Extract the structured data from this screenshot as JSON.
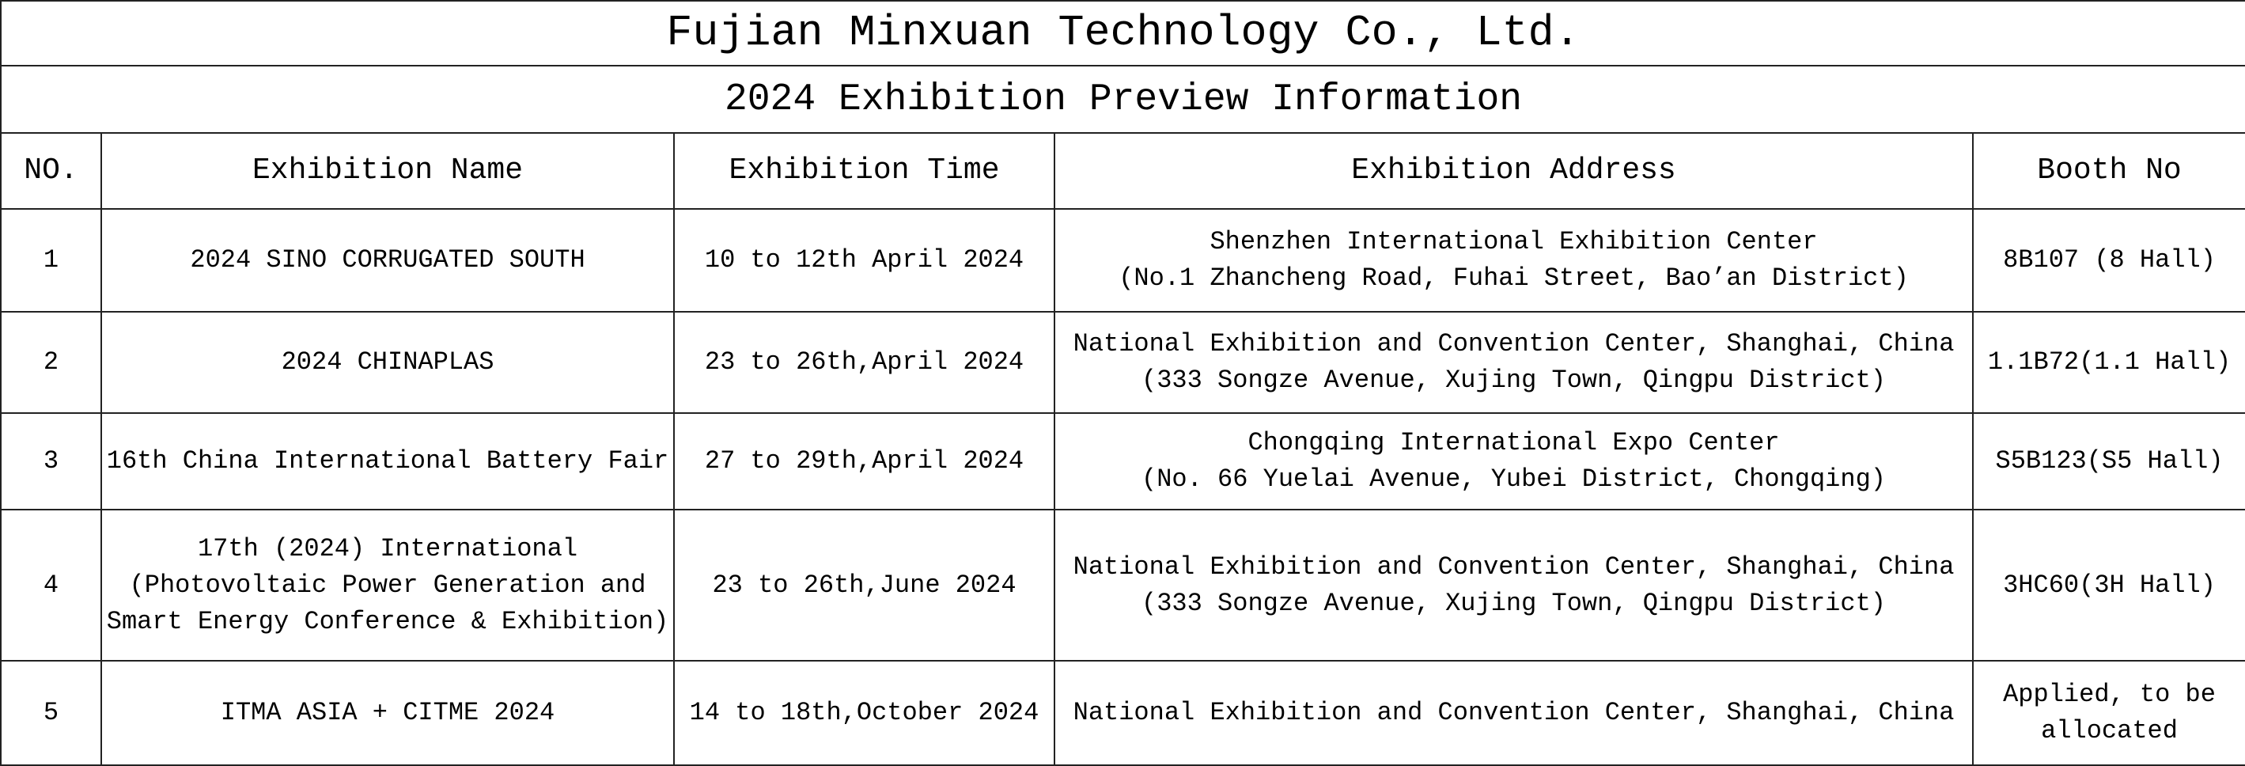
{
  "title": "Fujian Minxuan Technology Co., Ltd.",
  "subtitle": "2024 Exhibition Preview Information",
  "columns": [
    "NO.",
    "Exhibition Name",
    "Exhibition Time",
    "Exhibition Address",
    "Booth No"
  ],
  "rows": [
    {
      "no": "1",
      "name": "2024 SINO CORRUGATED SOUTH",
      "time": "10 to 12th April 2024",
      "address": "Shenzhen International Exhibition Center\n(No.1 Zhancheng Road, Fuhai Street, Bao’an District)",
      "booth": "8B107 (8 Hall)"
    },
    {
      "no": "2",
      "name": "2024 CHINAPLAS",
      "time": "23 to 26th,April 2024",
      "address": "National Exhibition and Convention Center, Shanghai, China\n(333 Songze Avenue, Xujing Town, Qingpu District)",
      "booth": "1.1B72(1.1 Hall)"
    },
    {
      "no": "3",
      "name": "16th China International Battery Fair",
      "time": "27 to 29th,April 2024",
      "address": "Chongqing International Expo Center\n(No. 66 Yuelai Avenue, Yubei District, Chongqing)",
      "booth": "S5B123(S5 Hall)"
    },
    {
      "no": "4",
      "name": "17th (2024) International\n(Photovoltaic Power Generation and\nSmart Energy Conference & Exhibition)",
      "time": "23 to 26th,June 2024",
      "address": "National Exhibition and Convention Center, Shanghai, China\n(333 Songze Avenue, Xujing Town, Qingpu District)",
      "booth": "3HC60(3H Hall)"
    },
    {
      "no": "5",
      "name": "ITMA ASIA + CITME 2024",
      "time": "14 to 18th,October 2024",
      "address": "National Exhibition and Convention Center, Shanghai, China",
      "booth": "Applied, to be\nallocated"
    }
  ]
}
